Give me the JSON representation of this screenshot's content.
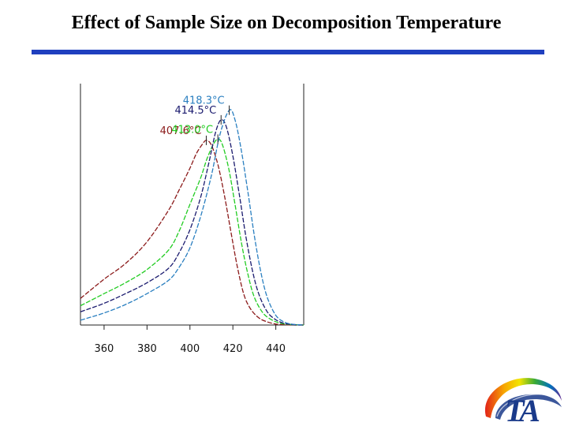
{
  "slide": {
    "title": "Effect of Sample Size on Decomposition Temperature"
  },
  "chart_data": {
    "type": "line",
    "title": "Effect of Sample Size on Decomposition Temperature",
    "xlabel": "",
    "ylabel": "",
    "xlim": [
      349,
      453
    ],
    "ylim": [
      0,
      1
    ],
    "xticks": [
      360,
      380,
      400,
      420,
      440
    ],
    "grid": false,
    "legend": "none",
    "series": [
      {
        "color": "#8b1a1a",
        "peak_label": "407.6°C",
        "peak_x": 407.6,
        "x": [
          349,
          360,
          370,
          380,
          390,
          395,
          400,
          403,
          405.5,
          407.6,
          410,
          413,
          416,
          419,
          422,
          425,
          428,
          432,
          436,
          440,
          443,
          448,
          453
        ],
        "y": [
          0.11,
          0.19,
          0.255,
          0.345,
          0.475,
          0.56,
          0.65,
          0.71,
          0.745,
          0.765,
          0.745,
          0.665,
          0.54,
          0.39,
          0.245,
          0.13,
          0.07,
          0.03,
          0.013,
          0.004,
          0.002,
          0.0,
          0.0
        ]
      },
      {
        "color": "#22cc22",
        "peak_label": "413.0°C",
        "peak_x": 413.0,
        "x": [
          349,
          360,
          370,
          380,
          390,
          395,
          400,
          405,
          408,
          411,
          413,
          415,
          418,
          421,
          424,
          427,
          430,
          434,
          438,
          442,
          447,
          453
        ],
        "y": [
          0.08,
          0.13,
          0.175,
          0.23,
          0.31,
          0.39,
          0.5,
          0.61,
          0.69,
          0.75,
          0.77,
          0.75,
          0.65,
          0.5,
          0.34,
          0.21,
          0.115,
          0.05,
          0.022,
          0.008,
          0.002,
          0.0
        ]
      },
      {
        "color": "#1a1a6e",
        "peak_label": "414.5°C",
        "peak_x": 414.5,
        "x": [
          349,
          360,
          370,
          380,
          390,
          395,
          400,
          405,
          409,
          412,
          414.5,
          417,
          420,
          423,
          426,
          429,
          432,
          436,
          440,
          444,
          449,
          453
        ],
        "y": [
          0.055,
          0.09,
          0.13,
          0.175,
          0.235,
          0.3,
          0.395,
          0.53,
          0.68,
          0.8,
          0.85,
          0.82,
          0.7,
          0.54,
          0.37,
          0.23,
          0.13,
          0.055,
          0.022,
          0.007,
          0.001,
          0.0
        ]
      },
      {
        "color": "#2a7fc0",
        "peak_label": "418.3°C",
        "peak_x": 418.3,
        "x": [
          349,
          360,
          370,
          380,
          390,
          395,
          400,
          405,
          410,
          414,
          418.3,
          421,
          424,
          427,
          430,
          433,
          436,
          440,
          444,
          448,
          453
        ],
        "y": [
          0.02,
          0.05,
          0.085,
          0.13,
          0.185,
          0.24,
          0.32,
          0.45,
          0.62,
          0.79,
          0.89,
          0.85,
          0.72,
          0.55,
          0.37,
          0.22,
          0.115,
          0.04,
          0.012,
          0.003,
          0.0
        ]
      }
    ]
  },
  "logo": {
    "text": "TA"
  }
}
